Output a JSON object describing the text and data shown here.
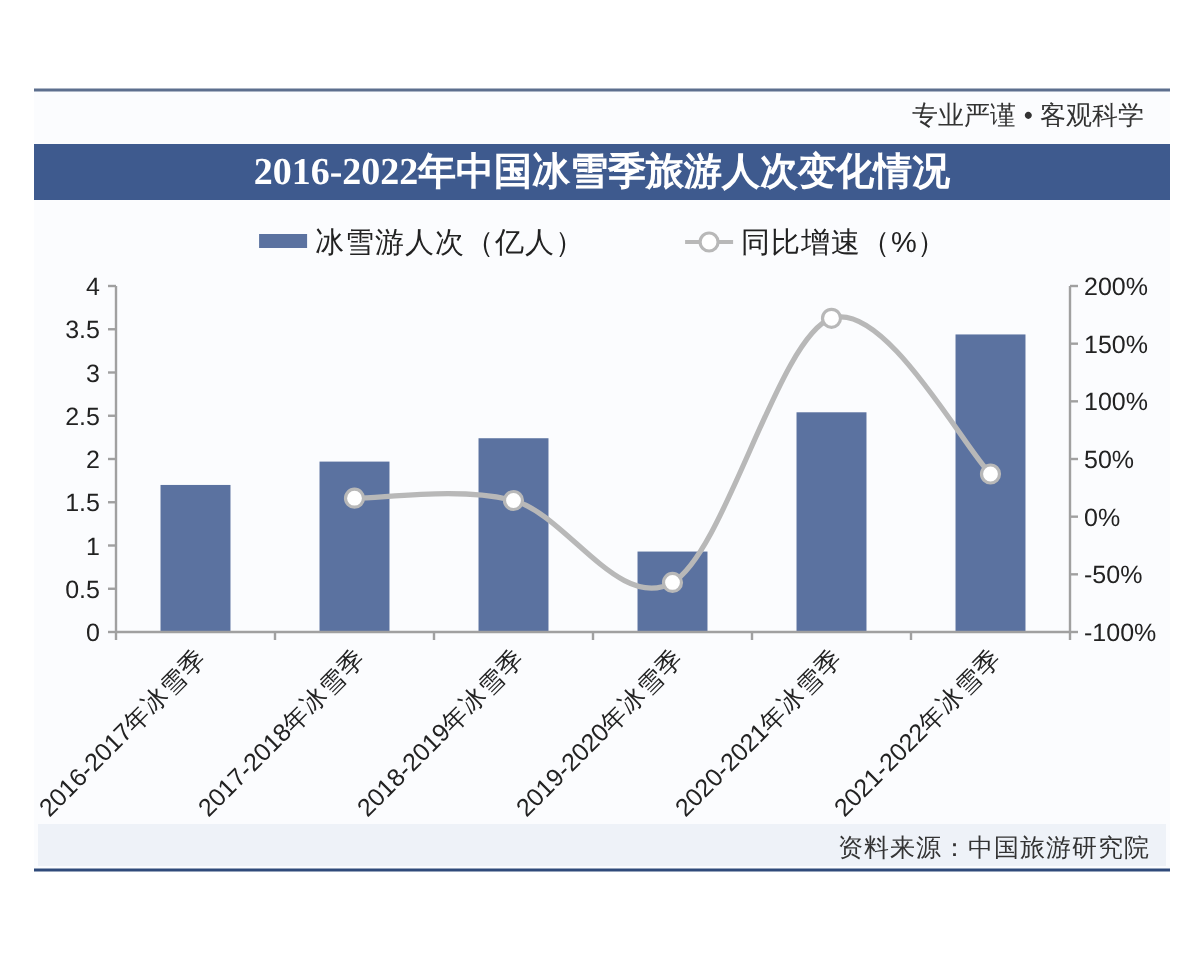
{
  "chart_data": {
    "type": "bar",
    "title": "2016-2022年中国冰雪季旅游人次变化情况",
    "categories": [
      "2016-2017年冰雪季",
      "2017-2018年冰雪季",
      "2018-2019年冰雪季",
      "2019-2020年冰雪季",
      "2020-2021年冰雪季",
      "2021-2022年冰雪季"
    ],
    "series": [
      {
        "name": "冰雪游人次（亿人）",
        "color": "#5b72a0",
        "values": [
          1.7,
          1.97,
          2.24,
          0.93,
          2.54,
          3.44
        ]
      },
      {
        "name": "同比增速（%）",
        "type": "line",
        "axis": "y2",
        "color": "#b8b8b8",
        "marker": "circle",
        "values": [
          null,
          16,
          14,
          -57,
          172,
          37
        ]
      }
    ],
    "ylim": [
      0,
      4
    ],
    "yticks": [
      0,
      0.5,
      1,
      1.5,
      2,
      2.5,
      3,
      3.5,
      4
    ],
    "y2lim": [
      -100,
      200
    ],
    "y2ticks": [
      {
        "value": -100,
        "label": "-100%"
      },
      {
        "value": -50,
        "label": "-50%"
      },
      {
        "value": 0,
        "label": "0%"
      },
      {
        "value": 50,
        "label": "50%"
      },
      {
        "value": 100,
        "label": "100%"
      },
      {
        "value": 150,
        "label": "150%"
      },
      {
        "value": 200,
        "label": "200%"
      }
    ],
    "legend": "top",
    "annotations": [
      "专业严谨 • 客观科学",
      "资料来源：中国旅游研究院"
    ]
  }
}
